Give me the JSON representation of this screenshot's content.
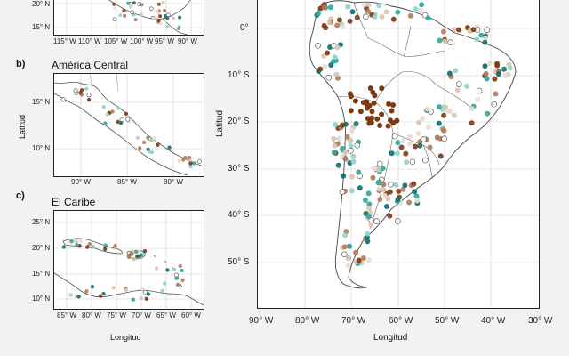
{
  "panels": {
    "a": {
      "x_ticks": [
        "115° W",
        "110° W",
        "105° W",
        "100° W",
        "95° W",
        "90° W"
      ],
      "y_ticks": [
        "20° N",
        "15° N"
      ]
    },
    "b": {
      "label": "b)",
      "title": "América Central",
      "x_ticks": [
        "90° W",
        "85° W",
        "80° W"
      ],
      "y_ticks": [
        "15° N",
        "10° N"
      ],
      "ylabel": "Latitud"
    },
    "c": {
      "label": "c)",
      "title": "El Caribe",
      "x_ticks": [
        "85° W",
        "80° W",
        "75° W",
        "70° W",
        "65° W",
        "60° W"
      ],
      "y_ticks": [
        "25° N",
        "20° N",
        "15° N",
        "10° N"
      ],
      "xlabel": "Longitud"
    },
    "main": {
      "x_ticks": [
        "90° W",
        "80° W",
        "70° W",
        "60° W",
        "50° W",
        "40° W",
        "30° W"
      ],
      "y_ticks": [
        "0°",
        "10° S",
        "20° S",
        "30° S",
        "40° S",
        "50° S"
      ],
      "xlabel": "Longitud",
      "ylabel": "Latitud"
    }
  },
  "colors": {
    "dark_brown": "#7a3b12",
    "mid_brown": "#b07a55",
    "light_tan": "#d9c4b0",
    "pale": "#e6ddd5",
    "teal": "#2aa89a",
    "light_teal": "#8fd3c8",
    "dark_teal": "#0e6e6a",
    "navy": "#1d3f66",
    "open": "#ffffff"
  }
}
